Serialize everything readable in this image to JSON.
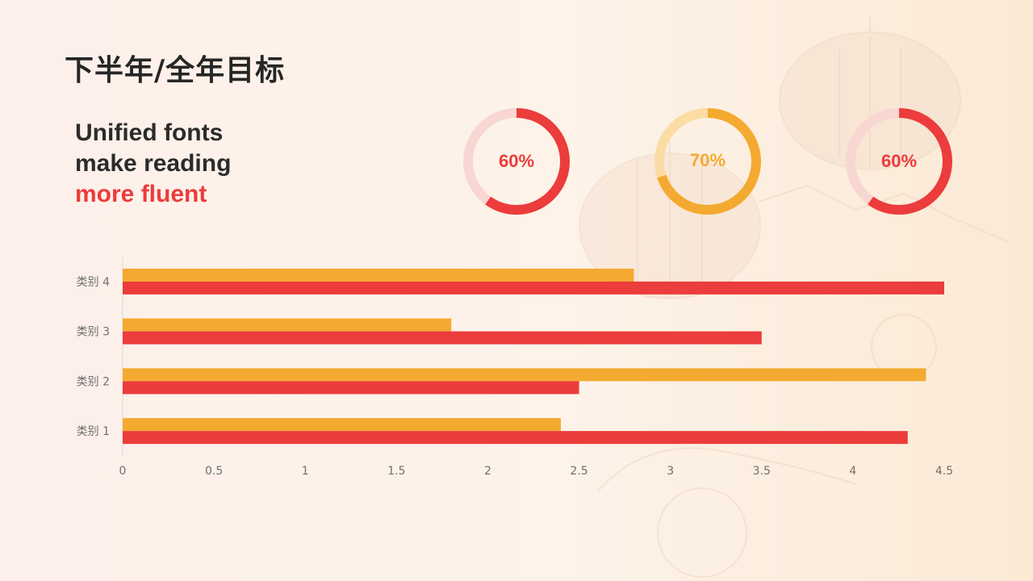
{
  "page": {
    "title": "下半年/全年目标"
  },
  "tagline": {
    "line1": "Unified fonts",
    "line2": "make reading",
    "line3": "more fluent"
  },
  "donuts": [
    {
      "value": 60,
      "label": "60%",
      "color": "#ec3c3c",
      "track_color": "#f8d7d2"
    },
    {
      "value": 70,
      "label": "70%",
      "color": "#f4aa30",
      "track_color": "#fbdca4"
    },
    {
      "value": 60,
      "label": "60%",
      "color": "#ec3c3c",
      "track_color": "#f8d7d2"
    }
  ],
  "chart_data": {
    "type": "bar",
    "orientation": "horizontal",
    "categories": [
      "类别 1",
      "类别 2",
      "类别 3",
      "类别 4"
    ],
    "series": [
      {
        "values": [
          2.4,
          4.4,
          1.8,
          2.8
        ],
        "color": "#f4aa30"
      },
      {
        "values": [
          4.3,
          2.5,
          3.5,
          4.5
        ],
        "color": "#ec3c3c"
      }
    ],
    "xlim": [
      0,
      4.5
    ],
    "xticks": [
      0,
      0.5,
      1,
      1.5,
      2,
      2.5,
      3,
      3.5,
      4,
      4.5
    ],
    "tick_labels": [
      "0",
      "0.5",
      "1",
      "1.5",
      "2",
      "2.5",
      "3",
      "3.5",
      "4",
      "4.5"
    ],
    "grid": false,
    "legend": "none"
  }
}
